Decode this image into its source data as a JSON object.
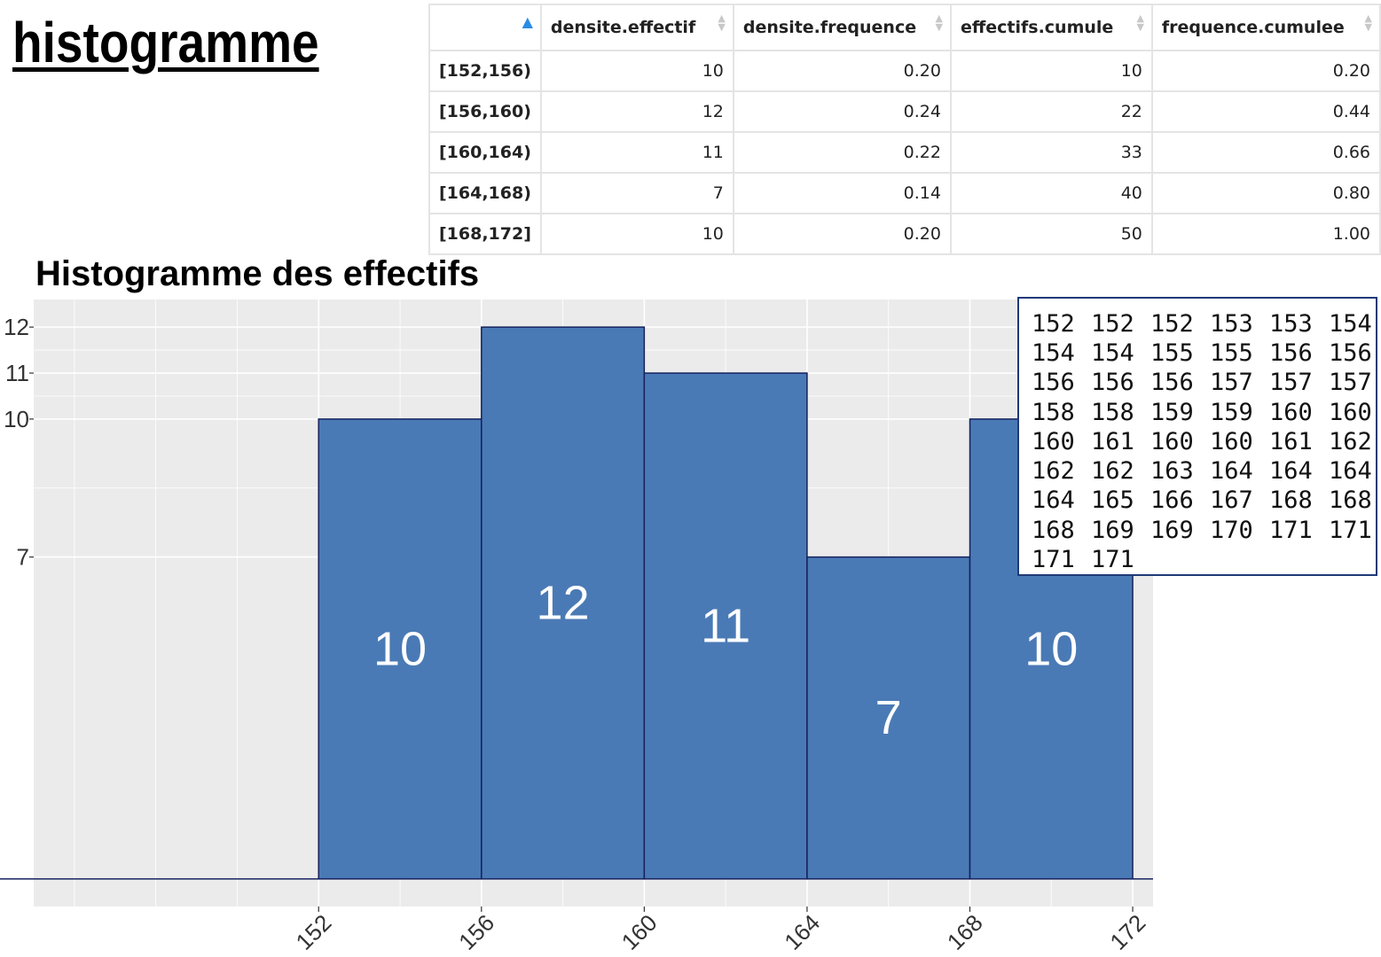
{
  "page": {
    "title": "histogramme"
  },
  "table": {
    "sort_indicator": "sort-ascending-icon",
    "columns": [
      "",
      "densite.effectif",
      "densite.frequence",
      "effectifs.cumule",
      "frequence.cumulee"
    ],
    "rows": [
      [
        "[152,156)",
        "10",
        "0.20",
        "10",
        "0.20"
      ],
      [
        "[156,160)",
        "12",
        "0.24",
        "22",
        "0.44"
      ],
      [
        "[160,164)",
        "11",
        "0.22",
        "33",
        "0.66"
      ],
      [
        "[164,168)",
        "7",
        "0.14",
        "40",
        "0.80"
      ],
      [
        "[168,172]",
        "10",
        "0.20",
        "50",
        "1.00"
      ]
    ]
  },
  "data_box": {
    "values": [
      "152",
      "152",
      "152",
      "153",
      "153",
      "154",
      "154",
      "154",
      "155",
      "155",
      "156",
      "156",
      "156",
      "156",
      "156",
      "157",
      "157",
      "157",
      "158",
      "158",
      "159",
      "159",
      "160",
      "160",
      "160",
      "161",
      "160",
      "160",
      "161",
      "162",
      "162",
      "162",
      "163",
      "164",
      "164",
      "164",
      "164",
      "165",
      "166",
      "167",
      "168",
      "168",
      "168",
      "169",
      "169",
      "170",
      "171",
      "171",
      "171",
      "171"
    ]
  },
  "chart_data": {
    "type": "bar",
    "title": "Histogramme des effectifs",
    "xlabel": "",
    "ylabel": "",
    "bins": [
      [
        152,
        156
      ],
      [
        156,
        160
      ],
      [
        160,
        164
      ],
      [
        164,
        168
      ],
      [
        168,
        172
      ]
    ],
    "values": [
      10,
      12,
      11,
      7,
      10
    ],
    "data_labels": [
      "10",
      "12",
      "11",
      "7",
      "10"
    ],
    "x_ticks": [
      "152",
      "156",
      "160",
      "164",
      "168",
      "172"
    ],
    "y_ticks": [
      "7",
      "10",
      "11",
      "12"
    ],
    "xlim": [
      145,
      172.5
    ],
    "ylim": [
      -0.6,
      12.6
    ],
    "grid": true,
    "colors": {
      "bar": "#4a7ab5",
      "bar_edge": "#15215e",
      "panel": "#ebebeb",
      "grid": "#ffffff",
      "label": "#ffffff"
    }
  }
}
